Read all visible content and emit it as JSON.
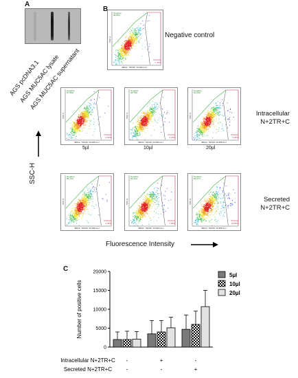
{
  "panels": {
    "a": "A",
    "b": "B",
    "c": "C"
  },
  "panel_a": {
    "lanes": [
      "AGS pcDNA3.1",
      "AGS MUC5AC lysate",
      "AGS MUC5AC supernatant"
    ]
  },
  "panel_b": {
    "negative_control_label": "Negative control",
    "row_labels": {
      "intracellular": "Intracellular\nN+2TR+C",
      "secreted": "Secreted\nN+2TR+C"
    },
    "volumes": [
      "5µl",
      "10µl",
      "20µl"
    ],
    "y_axis_label": "SSC-H",
    "x_axis_label": "Fluorescence Intensity",
    "plot_axis_y": "SSC-H",
    "plot_axis_x": "488nm: 530/30: AF488-A-H",
    "gate_negative": "Negative",
    "gate_positive": "Positive",
    "plots": {
      "neg": {
        "neg_pct": "98.89%",
        "pos_pct": "1.11%"
      },
      "i1": {
        "neg_pct": "97.38%",
        "pos_pct": "2.62%"
      },
      "i2": {
        "neg_pct": "95.78%",
        "pos_pct": "4.22%"
      },
      "i3": {
        "neg_pct": "90.93%",
        "pos_pct": "9.06%"
      },
      "s1": {
        "neg_pct": "95.71%",
        "pos_pct": "4.29%"
      },
      "s2": {
        "neg_pct": "92.16%",
        "pos_pct": "7.84%"
      },
      "s3": {
        "neg_pct": "85.67%",
        "pos_pct": "14.33%"
      }
    }
  },
  "chart_data": {
    "type": "bar",
    "ylabel": "Number of positive cells",
    "ylim": [
      0,
      20000
    ],
    "yticks": [
      "0",
      "5000",
      "10000",
      "15000",
      "20000"
    ],
    "series": [
      {
        "name": "5µl",
        "values": [
          2000,
          3500,
          4700
        ],
        "errors": [
          2000,
          3500,
          3800
        ],
        "fill": "#7a7a7a"
      },
      {
        "name": "10µl",
        "values": [
          2000,
          4000,
          6000
        ],
        "errors": [
          2200,
          3000,
          3500
        ],
        "fill": "checker"
      },
      {
        "name": "20µl",
        "values": [
          2100,
          5100,
          10700
        ],
        "errors": [
          2000,
          2800,
          4300
        ],
        "fill": "#e2e2e2"
      }
    ],
    "row_labels": [
      "Intracellular N+2TR+C",
      "Secreted N+2TR+C"
    ],
    "row_signs": [
      [
        "-",
        "+",
        "-"
      ],
      [
        "-",
        "-",
        "+"
      ]
    ]
  }
}
